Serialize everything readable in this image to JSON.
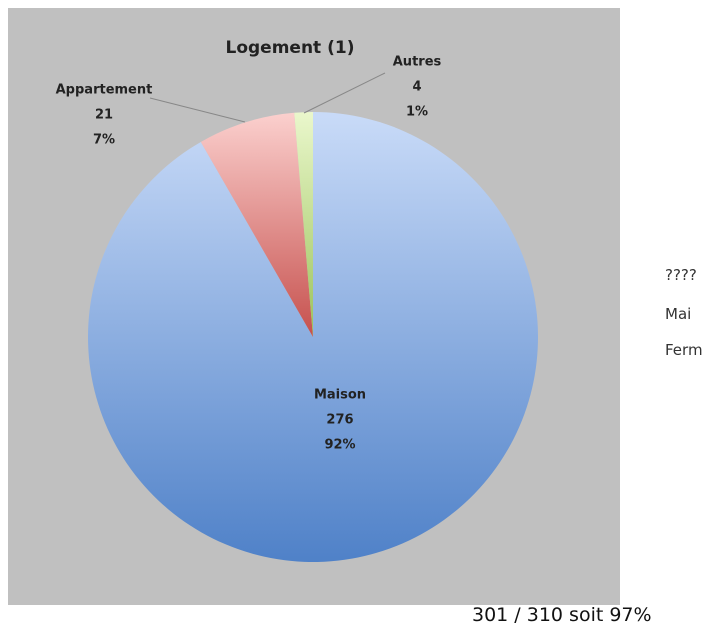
{
  "chart_data": {
    "type": "pie",
    "title": "Logement (1)",
    "categories": [
      "Maison",
      "Appartement",
      "Autres"
    ],
    "values": [
      276,
      21,
      4
    ],
    "percent_labels": [
      "92%",
      "7%",
      "1%"
    ],
    "colors": [
      [
        "#c9dbf8",
        "#4f81c8"
      ],
      [
        "#fbd0ce",
        "#c6504d"
      ],
      [
        "#eaf7cc",
        "#9bc25a"
      ]
    ]
  },
  "side_text": [
    "????",
    "Mai",
    "Ferm"
  ],
  "footer": "301 / 310 soit 97%"
}
